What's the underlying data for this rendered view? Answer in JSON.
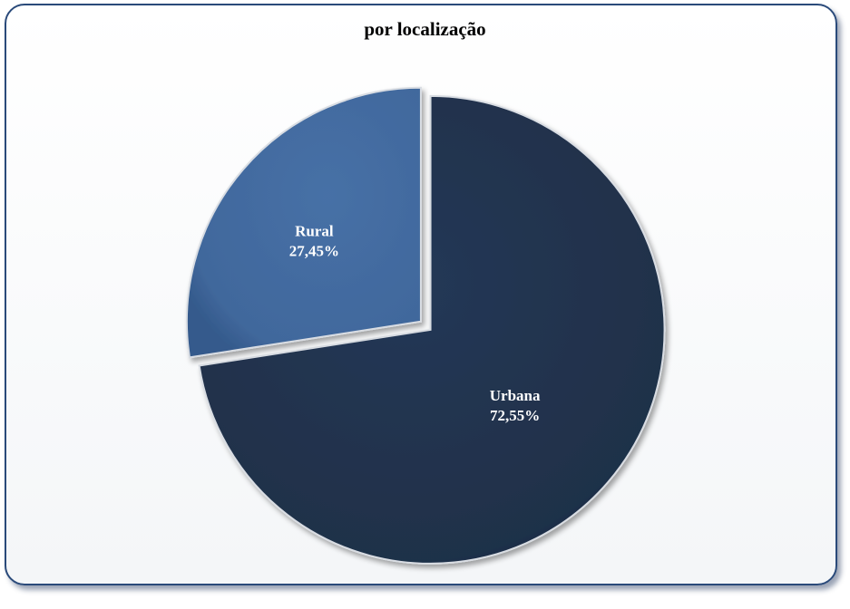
{
  "chart_data": {
    "type": "pie",
    "title": "por localização",
    "slices": [
      {
        "label": "Urbana",
        "value": 72.55,
        "value_label": "72,55%",
        "color": "#1f3049"
      },
      {
        "label": "Rural",
        "value": 27.45,
        "value_label": "27,45%",
        "color": "#41689c"
      }
    ],
    "legend": "none"
  }
}
